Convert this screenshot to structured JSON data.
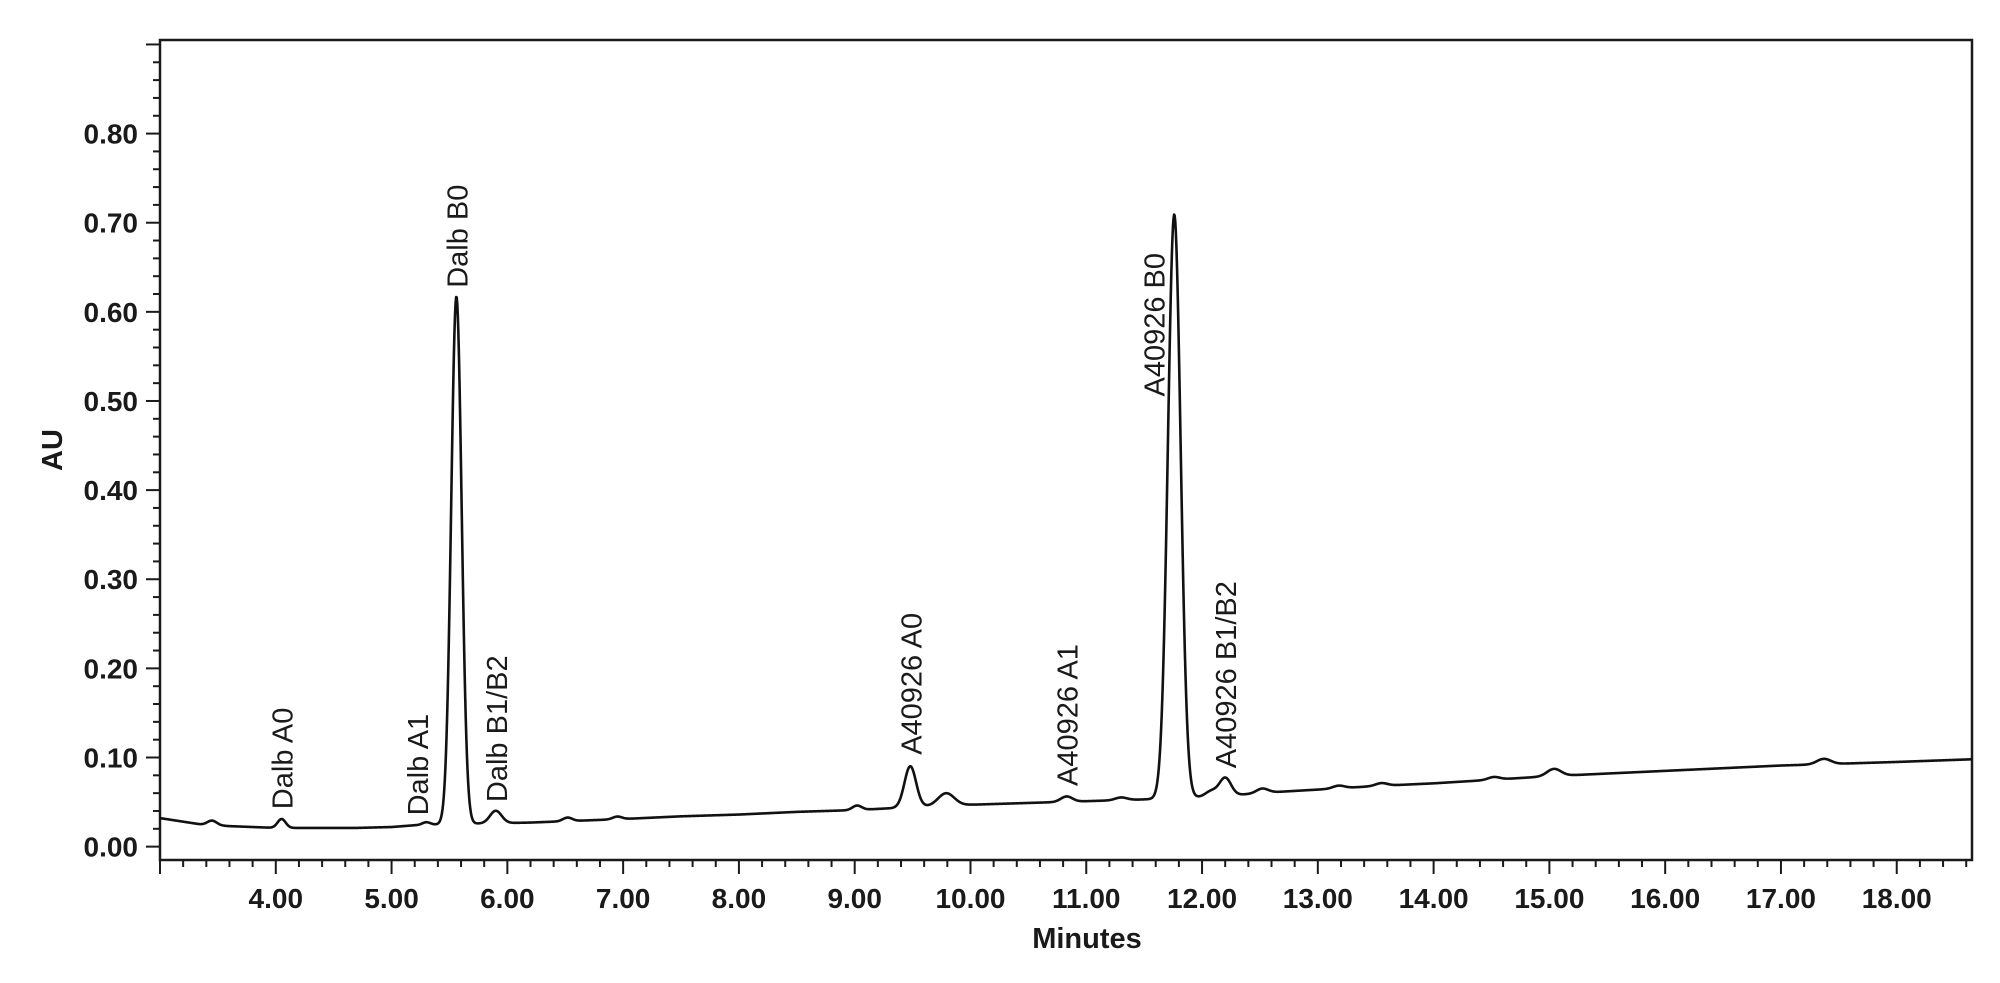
{
  "chart_data": {
    "type": "line",
    "title": "",
    "xlabel": "Minutes",
    "ylabel": "AU",
    "xlim": [
      3.0,
      18.65
    ],
    "ylim": [
      -0.015,
      0.905
    ],
    "grid": false,
    "x_ticks": [
      {
        "value": 4.0,
        "label": "4.00"
      },
      {
        "value": 5.0,
        "label": "5.00"
      },
      {
        "value": 6.0,
        "label": "6.00"
      },
      {
        "value": 7.0,
        "label": "7.00"
      },
      {
        "value": 8.0,
        "label": "8.00"
      },
      {
        "value": 9.0,
        "label": "9.00"
      },
      {
        "value": 10.0,
        "label": "10.00"
      },
      {
        "value": 11.0,
        "label": "11.00"
      },
      {
        "value": 12.0,
        "label": "12.00"
      },
      {
        "value": 13.0,
        "label": "13.00"
      },
      {
        "value": 14.0,
        "label": "14.00"
      },
      {
        "value": 15.0,
        "label": "15.00"
      },
      {
        "value": 16.0,
        "label": "16.00"
      },
      {
        "value": 17.0,
        "label": "17.00"
      },
      {
        "value": 18.0,
        "label": "18.00"
      }
    ],
    "y_ticks": [
      {
        "value": 0.0,
        "label": "0.00"
      },
      {
        "value": 0.1,
        "label": "0.10"
      },
      {
        "value": 0.2,
        "label": "0.20"
      },
      {
        "value": 0.3,
        "label": "0.30"
      },
      {
        "value": 0.4,
        "label": "0.40"
      },
      {
        "value": 0.5,
        "label": "0.50"
      },
      {
        "value": 0.6,
        "label": "0.60"
      },
      {
        "value": 0.7,
        "label": "0.70"
      },
      {
        "value": 0.8,
        "label": "0.80"
      }
    ],
    "baseline": [
      [
        3.0,
        0.032
      ],
      [
        3.2,
        0.028
      ],
      [
        3.35,
        0.025
      ],
      [
        3.6,
        0.023
      ],
      [
        3.8,
        0.022
      ],
      [
        4.0,
        0.021
      ],
      [
        4.3,
        0.021
      ],
      [
        4.7,
        0.021
      ],
      [
        5.0,
        0.022
      ],
      [
        5.2,
        0.024
      ],
      [
        5.45,
        0.025
      ],
      [
        5.8,
        0.026
      ],
      [
        6.2,
        0.027
      ],
      [
        6.6,
        0.029
      ],
      [
        7.0,
        0.031
      ],
      [
        7.5,
        0.034
      ],
      [
        8.0,
        0.036
      ],
      [
        8.5,
        0.039
      ],
      [
        9.0,
        0.041
      ],
      [
        9.3,
        0.043
      ],
      [
        9.6,
        0.045
      ],
      [
        10.0,
        0.047
      ],
      [
        10.5,
        0.049
      ],
      [
        11.0,
        0.051
      ],
      [
        11.5,
        0.053
      ],
      [
        11.9,
        0.055
      ],
      [
        12.3,
        0.058
      ],
      [
        12.6,
        0.061
      ],
      [
        13.0,
        0.064
      ],
      [
        13.5,
        0.068
      ],
      [
        14.0,
        0.071
      ],
      [
        14.5,
        0.075
      ],
      [
        15.0,
        0.079
      ],
      [
        15.5,
        0.082
      ],
      [
        16.0,
        0.085
      ],
      [
        16.5,
        0.088
      ],
      [
        17.0,
        0.091
      ],
      [
        17.5,
        0.093
      ],
      [
        18.0,
        0.095
      ],
      [
        18.65,
        0.098
      ]
    ],
    "peaks": [
      {
        "x": 3.45,
        "height": 0.005,
        "width": 0.04
      },
      {
        "x": 4.05,
        "height": 0.01,
        "width": 0.035
      },
      {
        "x": 5.3,
        "height": 0.003,
        "width": 0.035
      },
      {
        "x": 5.56,
        "height": 0.592,
        "width": 0.045
      },
      {
        "x": 5.9,
        "height": 0.014,
        "width": 0.05
      },
      {
        "x": 6.52,
        "height": 0.004,
        "width": 0.04
      },
      {
        "x": 6.95,
        "height": 0.003,
        "width": 0.04
      },
      {
        "x": 9.02,
        "height": 0.005,
        "width": 0.04
      },
      {
        "x": 9.48,
        "height": 0.046,
        "width": 0.05
      },
      {
        "x": 9.79,
        "height": 0.014,
        "width": 0.07
      },
      {
        "x": 10.83,
        "height": 0.006,
        "width": 0.05
      },
      {
        "x": 11.3,
        "height": 0.003,
        "width": 0.05
      },
      {
        "x": 11.76,
        "height": 0.655,
        "width": 0.055
      },
      {
        "x": 12.08,
        "height": 0.006,
        "width": 0.05
      },
      {
        "x": 12.2,
        "height": 0.02,
        "width": 0.05
      },
      {
        "x": 12.52,
        "height": 0.005,
        "width": 0.05
      },
      {
        "x": 13.18,
        "height": 0.003,
        "width": 0.05
      },
      {
        "x": 13.55,
        "height": 0.003,
        "width": 0.05
      },
      {
        "x": 14.52,
        "height": 0.003,
        "width": 0.05
      },
      {
        "x": 15.04,
        "height": 0.008,
        "width": 0.06
      },
      {
        "x": 17.37,
        "height": 0.006,
        "width": 0.06
      }
    ],
    "annotations": [
      {
        "text": "Dalb A0",
        "x": 4.05,
        "y": 0.042
      },
      {
        "text": "Dalb A1",
        "x": 5.22,
        "y": 0.035
      },
      {
        "text": "Dalb B0",
        "x": 5.56,
        "y": 0.627
      },
      {
        "text": "Dalb B1/B2",
        "x": 5.9,
        "y": 0.05
      },
      {
        "text": "A40926 A0",
        "x": 9.48,
        "y": 0.103
      },
      {
        "text": "A40926 A1",
        "x": 10.83,
        "y": 0.068
      },
      {
        "text": "A40926 B0",
        "x": 11.58,
        "y": 0.505
      },
      {
        "text": "A40926 B1/B2",
        "x": 12.2,
        "y": 0.088
      }
    ]
  }
}
